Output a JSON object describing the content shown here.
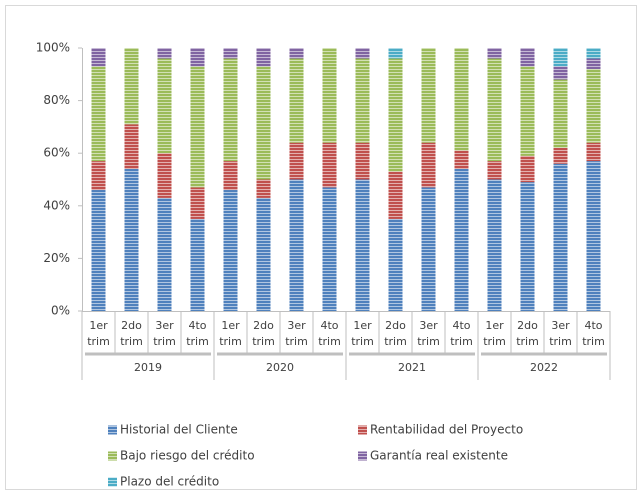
{
  "chart_data": {
    "type": "stacked_bar_100",
    "categories": [
      [
        "1er",
        "trim"
      ],
      [
        "2do",
        "trim"
      ],
      [
        "3er",
        "trim"
      ],
      [
        "4to",
        "trim"
      ],
      [
        "1er",
        "trim"
      ],
      [
        "2do",
        "trim"
      ],
      [
        "3er",
        "trim"
      ],
      [
        "4to",
        "trim"
      ],
      [
        "1er",
        "trim"
      ],
      [
        "2do",
        "trim"
      ],
      [
        "3er",
        "trim"
      ],
      [
        "4to",
        "trim"
      ],
      [
        "1er",
        "trim"
      ],
      [
        "2do",
        "trim"
      ],
      [
        "3er",
        "trim"
      ],
      [
        "4to",
        "trim"
      ]
    ],
    "groups": [
      "2019",
      "2020",
      "2021",
      "2022"
    ],
    "series": [
      {
        "name": "Historial del Cliente",
        "color": "#4f81bd",
        "values": [
          46,
          54,
          43,
          35,
          46,
          43,
          50,
          47,
          50,
          35,
          47,
          54,
          50,
          49,
          56,
          57
        ]
      },
      {
        "name": "Rentabilidad del Proyecto",
        "color": "#c0504d",
        "values": [
          11,
          17,
          17,
          12,
          11,
          7,
          14,
          17,
          14,
          18,
          17,
          7,
          7,
          10,
          6,
          7
        ]
      },
      {
        "name": "Bajo riesgo del crédito",
        "color": "#9bbb59",
        "values": [
          36,
          29,
          36,
          46,
          39,
          43,
          32,
          36,
          32,
          43,
          36,
          39,
          39,
          34,
          26,
          28
        ]
      },
      {
        "name": "Garantía real existente",
        "color": "#8064a2",
        "values": [
          7,
          0,
          4,
          7,
          4,
          7,
          4,
          0,
          4,
          0,
          0,
          0,
          4,
          7,
          5,
          4
        ]
      },
      {
        "name": "Plazo del crédito",
        "color": "#4bacc6",
        "values": [
          0,
          0,
          0,
          0,
          0,
          0,
          0,
          0,
          0,
          4,
          0,
          0,
          0,
          0,
          7,
          4
        ]
      }
    ],
    "ylim": [
      0,
      100
    ],
    "yticks": [
      {
        "value": 0,
        "label": "0%"
      },
      {
        "value": 20,
        "label": "20%"
      },
      {
        "value": 40,
        "label": "40%"
      },
      {
        "value": 60,
        "label": "60%"
      },
      {
        "value": 80,
        "label": "80%"
      },
      {
        "value": 100,
        "label": "100%"
      }
    ]
  }
}
